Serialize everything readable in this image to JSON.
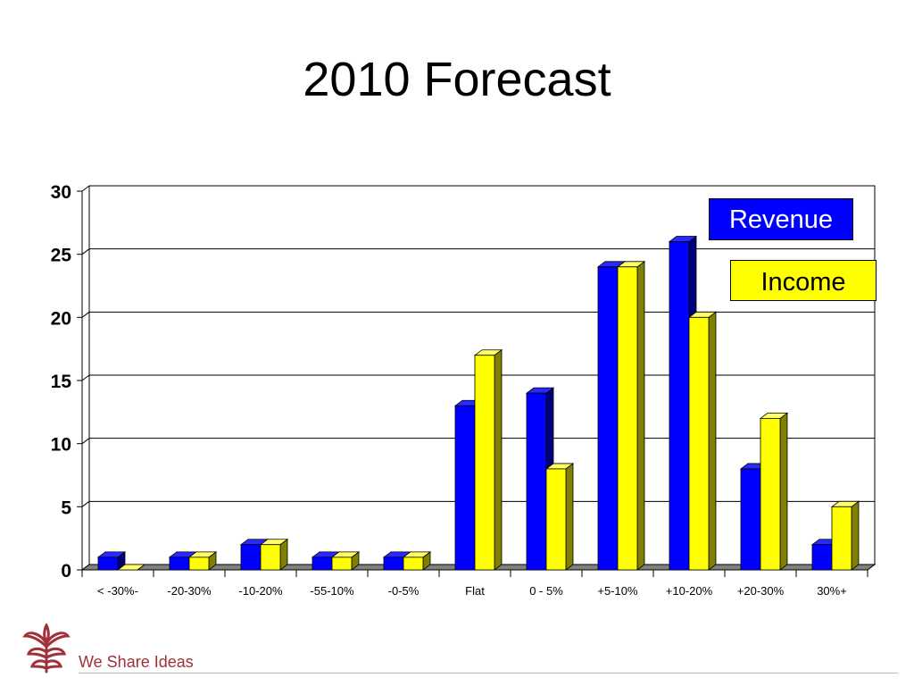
{
  "slide": {
    "title": "2010 Forecast",
    "footer_text": "We Share Ideas"
  },
  "logo": {
    "icon": "flower-logo-icon",
    "color": "#a0303a"
  },
  "chart_data": {
    "type": "bar",
    "title": "",
    "xlabel": "",
    "ylabel": "",
    "ylim": [
      0,
      30
    ],
    "yticks": [
      0,
      5,
      10,
      15,
      20,
      25,
      30
    ],
    "grid": true,
    "legend": "top-right",
    "categories": [
      "< -30%-",
      "-20-30%",
      "-10-20%",
      "-55-10%",
      "-0-5%",
      "Flat",
      "0 - 5%",
      "+5-10%",
      "+10-20%",
      "+20-30%",
      "30%+"
    ],
    "series": [
      {
        "name": "Revenue",
        "color": "#0000ff",
        "values": [
          1,
          1,
          2,
          1,
          1,
          13,
          14,
          24,
          26,
          8,
          2
        ]
      },
      {
        "name": "Income",
        "color": "#ffff00",
        "values": [
          0,
          1,
          2,
          1,
          1,
          17,
          8,
          24,
          20,
          12,
          5
        ]
      }
    ]
  }
}
